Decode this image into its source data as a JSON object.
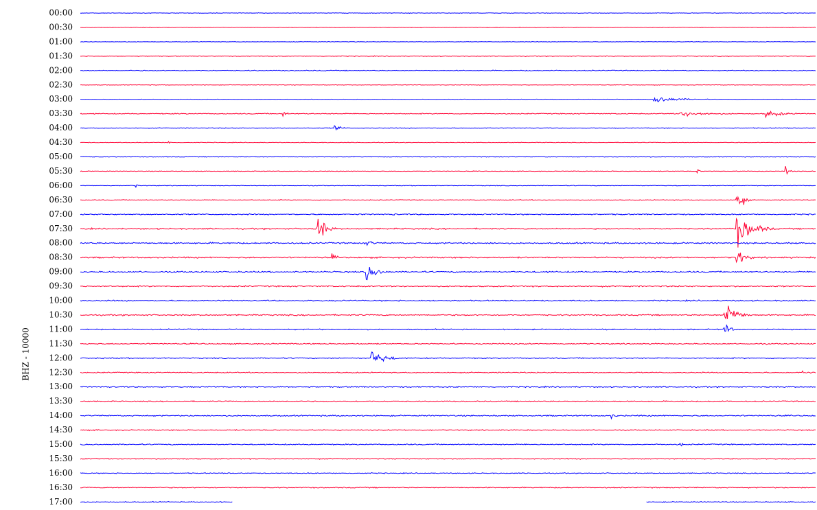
{
  "colors": {
    "odd_trace": "#0000ff",
    "even_trace": "#ff0033",
    "background": "#ffffff",
    "text": "#000000"
  },
  "chart_data": {
    "type": "line",
    "title": "",
    "ylabel": "BHZ - 10000",
    "xlabel": "",
    "grid": false,
    "trace_colors_alternate": [
      "#0000ff",
      "#ff0033"
    ],
    "y_tick_labels": [
      "00:00",
      "00:30",
      "01:00",
      "01:30",
      "02:00",
      "02:30",
      "03:00",
      "03:30",
      "04:00",
      "04:30",
      "05:00",
      "05:30",
      "06:00",
      "06:30",
      "07:00",
      "07:30",
      "08:00",
      "08:30",
      "09:00",
      "09:30",
      "10:00",
      "10:30",
      "11:00",
      "11:30",
      "12:00",
      "12:30",
      "13:00",
      "13:30",
      "14:00",
      "14:30",
      "15:00",
      "15:30",
      "16:00",
      "16:30",
      "17:00"
    ],
    "trace_segment_minutes": 30,
    "base_noise": [
      0.6,
      0.7,
      0.5,
      0.7,
      0.9,
      0.6,
      0.5,
      1.0,
      0.8,
      0.6,
      0.7,
      0.7,
      0.7,
      0.8,
      1.3,
      1.4,
      1.6,
      1.5,
      1.5,
      1.4,
      1.3,
      1.4,
      1.2,
      1.2,
      1.1,
      1.1,
      1.2,
      1.1,
      1.4,
      1.1,
      1.2,
      1.0,
      1.0,
      1.1,
      1.0
    ],
    "partial_trace": {
      "label": "17:00",
      "visible_ranges_minutes": [
        [
          0,
          6.2
        ],
        [
          23.1,
          30
        ]
      ]
    },
    "events": [
      {
        "label": "03:00",
        "minute": 23.4,
        "amplitude": 8,
        "duration_min": 2.5
      },
      {
        "label": "03:30",
        "minute": 8.3,
        "amplitude": 6,
        "duration_min": 0.4
      },
      {
        "label": "03:30",
        "minute": 24.5,
        "amplitude": 6,
        "duration_min": 3.5
      },
      {
        "label": "03:30",
        "minute": 28.0,
        "amplitude": 7,
        "duration_min": 2.0
      },
      {
        "label": "04:00",
        "minute": 10.4,
        "amplitude": 8,
        "duration_min": 0.6
      },
      {
        "label": "04:30",
        "minute": 3.6,
        "amplitude": 4,
        "duration_min": 0.2
      },
      {
        "label": "05:30",
        "minute": 25.2,
        "amplitude": 4,
        "duration_min": 0.3
      },
      {
        "label": "05:30",
        "minute": 28.8,
        "amplitude": 9,
        "duration_min": 0.4
      },
      {
        "label": "06:00",
        "minute": 2.3,
        "amplitude": 3,
        "duration_min": 0.2
      },
      {
        "label": "06:30",
        "minute": 26.8,
        "amplitude": 28,
        "duration_min": 0.6
      },
      {
        "label": "07:00",
        "minute": 12.8,
        "amplitude": 4,
        "duration_min": 0.3
      },
      {
        "label": "07:30",
        "minute": 9.7,
        "amplitude": 30,
        "duration_min": 0.8
      },
      {
        "label": "07:30",
        "minute": 26.8,
        "amplitude": 34,
        "duration_min": 1.6
      },
      {
        "label": "08:00",
        "minute": 11.6,
        "amplitude": 8,
        "duration_min": 1.0
      },
      {
        "label": "08:30",
        "minute": 10.3,
        "amplitude": 6,
        "duration_min": 0.6
      },
      {
        "label": "08:30",
        "minute": 26.8,
        "amplitude": 20,
        "duration_min": 0.8
      },
      {
        "label": "09:00",
        "minute": 11.7,
        "amplitude": 16,
        "duration_min": 1.3
      },
      {
        "label": "10:30",
        "minute": 26.3,
        "amplitude": 30,
        "duration_min": 1.2
      },
      {
        "label": "11:00",
        "minute": 26.3,
        "amplitude": 14,
        "duration_min": 0.6
      },
      {
        "label": "12:00",
        "minute": 11.9,
        "amplitude": 16,
        "duration_min": 1.5
      },
      {
        "label": "12:30",
        "minute": 29.5,
        "amplitude": 4,
        "duration_min": 1.0
      },
      {
        "label": "14:00",
        "minute": 21.7,
        "amplitude": 5,
        "duration_min": 0.6
      },
      {
        "label": "15:00",
        "minute": 24.5,
        "amplitude": 5,
        "duration_min": 0.3
      }
    ]
  }
}
